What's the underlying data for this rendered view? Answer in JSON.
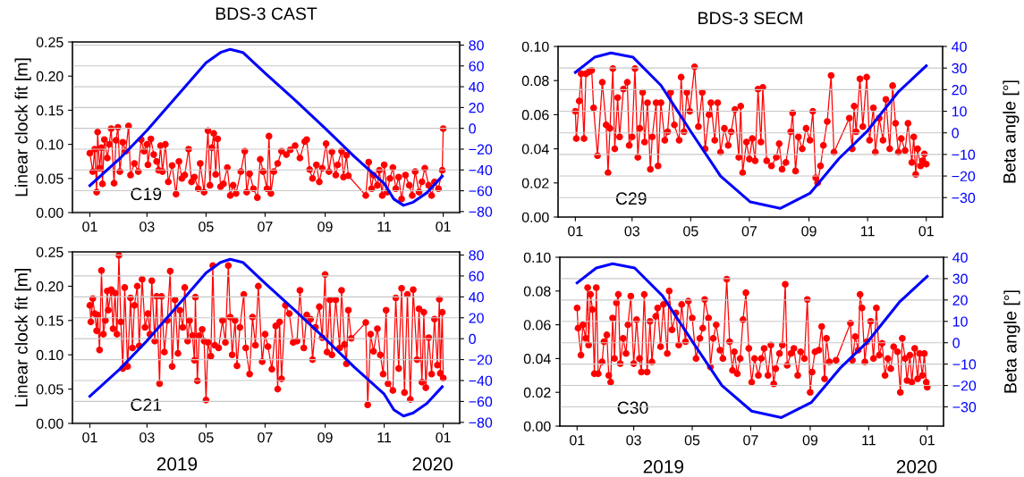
{
  "chart_data": [
    {
      "type": "line",
      "title": "BDS-3 CAST",
      "ylabel": "Linear clock fit [m]",
      "annotations": [
        "C19"
      ],
      "grid": "y",
      "xlim": [
        "2018-12-14",
        "2020-01-18"
      ],
      "xticks": [
        {
          "value": "2019-01-01",
          "label": "01"
        },
        {
          "value": "2019-03-01",
          "label": "03"
        },
        {
          "value": "2019-05-01",
          "label": "05"
        },
        {
          "value": "2019-07-01",
          "label": "07"
        },
        {
          "value": "2019-09-01",
          "label": "09"
        },
        {
          "value": "2019-11-01",
          "label": "11"
        },
        {
          "value": "2020-01-01",
          "label": "01"
        }
      ],
      "ylim": [
        0,
        0.25
      ],
      "yticks": [
        {
          "value": 0,
          "label": "0.00"
        },
        {
          "value": 0.05,
          "label": "0.05"
        },
        {
          "value": 0.1,
          "label": "0.10"
        },
        {
          "value": 0.15,
          "label": "0.15"
        },
        {
          "value": 0.2,
          "label": "0.20"
        },
        {
          "value": 0.25,
          "label": "0.25"
        }
      ],
      "y2lim": [
        -81,
        83
      ],
      "y2ticks": [
        {
          "value": -80,
          "label": "−80"
        },
        {
          "value": -60,
          "label": "−60"
        },
        {
          "value": -40,
          "label": "−40"
        },
        {
          "value": -20,
          "label": "−20"
        },
        {
          "value": 0,
          "label": "0"
        },
        {
          "value": 20,
          "label": "20"
        },
        {
          "value": 40,
          "label": "40"
        },
        {
          "value": 60,
          "label": "60"
        },
        {
          "value": 80,
          "label": "80"
        }
      ],
      "x": [
        "2019-01-01",
        "2019-01-04",
        "2019-01-06",
        "2019-01-08",
        "2019-01-09",
        "2019-01-11",
        "2019-01-13",
        "2019-01-14",
        "2019-01-16",
        "2019-01-19",
        "2019-01-21",
        "2019-01-23",
        "2019-01-26",
        "2019-01-28",
        "2019-01-30",
        "2019-02-01",
        "2019-02-04",
        "2019-02-07",
        "2019-02-10",
        "2019-02-12",
        "2019-02-16",
        "2019-02-20",
        "2019-02-23",
        "2019-02-26",
        "2019-03-01",
        "2019-03-02",
        "2019-03-05",
        "2019-03-08",
        "2019-03-11",
        "2019-03-13",
        "2019-03-15",
        "2019-03-17",
        "2019-03-20",
        "2019-03-23",
        "2019-03-27",
        "2019-03-31",
        "2019-04-03",
        "2019-04-06",
        "2019-04-09",
        "2019-04-13",
        "2019-04-16",
        "2019-04-19",
        "2019-04-23",
        "2019-04-25",
        "2019-04-29",
        "2019-05-03",
        "2019-05-05",
        "2019-05-07",
        "2019-05-09",
        "2019-05-11",
        "2019-05-13",
        "2019-05-16",
        "2019-05-19",
        "2019-05-23",
        "2019-05-26",
        "2019-05-29",
        "2019-06-01",
        "2019-06-06",
        "2019-06-10",
        "2019-06-12",
        "2019-06-15",
        "2019-06-19",
        "2019-06-23",
        "2019-06-26",
        "2019-06-29",
        "2019-07-03",
        "2019-07-05",
        "2019-07-07",
        "2019-07-10",
        "2019-07-14",
        "2019-07-18",
        "2019-07-23",
        "2019-07-27",
        "2019-08-01",
        "2019-08-06",
        "2019-08-11",
        "2019-08-13",
        "2019-08-16",
        "2019-08-19",
        "2019-08-23",
        "2019-08-26",
        "2019-08-29",
        "2019-09-02",
        "2019-09-05",
        "2019-09-08",
        "2019-09-12",
        "2019-09-14",
        "2019-09-18",
        "2019-09-20",
        "2019-09-23",
        "2019-09-25",
        "2019-10-13",
        "2019-10-16",
        "2019-10-19",
        "2019-10-21",
        "2019-10-25",
        "2019-10-27",
        "2019-10-30",
        "2019-11-01",
        "2019-11-04",
        "2019-11-07",
        "2019-11-10",
        "2019-11-13",
        "2019-11-16",
        "2019-11-19",
        "2019-11-23",
        "2019-11-27",
        "2019-11-30",
        "2019-12-03",
        "2019-12-07",
        "2019-12-10",
        "2019-12-13",
        "2019-12-17",
        "2019-12-20",
        "2019-12-23",
        "2019-12-27",
        "2019-12-31",
        "2020-01-01"
      ],
      "series": [
        {
          "color": "#ff0000",
          "marker": "circle",
          "values": [
            0.087,
            0.06,
            0.093,
            0.03,
            0.118,
            0.065,
            0.095,
            0.042,
            0.107,
            0.08,
            0.1,
            0.123,
            0.043,
            0.106,
            0.125,
            0.06,
            0.103,
            0.09,
            0.127,
            0.055,
            0.072,
            0.06,
            0.107,
            0.09,
            0.1,
            0.07,
            0.108,
            0.085,
            0.075,
            0.062,
            0.098,
            0.06,
            0.1,
            0.045,
            0.069,
            0.027,
            0.075,
            0.05,
            0.055,
            0.093,
            0.045,
            0.052,
            0.035,
            0.072,
            0.03,
            0.12,
            0.04,
            0.095,
            0.116,
            0.056,
            0.108,
            0.038,
            0.042,
            0.066,
            0.025,
            0.04,
            0.028,
            0.06,
            0.09,
            0.03,
            0.057,
            0.035,
            0.022,
            0.078,
            0.06,
            0.035,
            0.112,
            0.028,
            0.06,
            0.072,
            0.09,
            0.085,
            0.092,
            0.098,
            0.08,
            0.104,
            0.107,
            0.063,
            0.05,
            0.07,
            0.045,
            0.065,
            0.101,
            0.06,
            0.089,
            0.055,
            0.07,
            0.09,
            0.052,
            0.084,
            0.054,
            0.025,
            0.074,
            0.035,
            0.055,
            0.04,
            0.062,
            0.025,
            0.07,
            0.03,
            0.05,
            0.066,
            0.035,
            0.052,
            0.02,
            0.055,
            0.04,
            0.025,
            0.06,
            0.03,
            0.045,
            0.065,
            0.04,
            0.025,
            0.045,
            0.035,
            0.062,
            0.123
          ]
        },
        {
          "color": "#0000ff",
          "axis": "y2",
          "x": [
            "2019-01-01",
            "2019-02-01",
            "2019-03-01",
            "2019-04-01",
            "2019-05-01",
            "2019-05-16",
            "2019-05-26",
            "2019-06-08",
            "2019-07-01",
            "2019-08-01",
            "2019-09-01",
            "2019-10-01",
            "2019-11-01",
            "2019-11-11",
            "2019-11-21",
            "2019-12-01",
            "2019-12-15",
            "2019-12-31"
          ],
          "values": [
            -55,
            -29,
            -2,
            31,
            63,
            73,
            76,
            73,
            53,
            27,
            0,
            -27,
            -53,
            -68,
            -74,
            -71,
            -62,
            -46
          ]
        }
      ]
    },
    {
      "type": "line",
      "title": "BDS-3 SECM",
      "y2label": "Beta angle [°]",
      "annotations": [
        "C29"
      ],
      "grid": "y",
      "xlim": [
        "2018-12-14",
        "2020-01-18"
      ],
      "xticks": [
        {
          "value": "2019-01-01",
          "label": "01"
        },
        {
          "value": "2019-03-01",
          "label": "03"
        },
        {
          "value": "2019-05-01",
          "label": "05"
        },
        {
          "value": "2019-07-01",
          "label": "07"
        },
        {
          "value": "2019-09-01",
          "label": "09"
        },
        {
          "value": "2019-11-01",
          "label": "11"
        },
        {
          "value": "2020-01-01",
          "label": "01"
        }
      ],
      "ylim": [
        0,
        0.1
      ],
      "yticks": [
        {
          "value": 0,
          "label": "0.00"
        },
        {
          "value": 0.02,
          "label": "0.02"
        },
        {
          "value": 0.04,
          "label": "0.04"
        },
        {
          "value": 0.06,
          "label": "0.06"
        },
        {
          "value": 0.08,
          "label": "0.08"
        },
        {
          "value": 0.1,
          "label": "0.10"
        }
      ],
      "y2lim": [
        -39,
        40
      ],
      "y2ticks": [
        {
          "value": -30,
          "label": "−30"
        },
        {
          "value": -20,
          "label": "−20"
        },
        {
          "value": -10,
          "label": "−10"
        },
        {
          "value": 0,
          "label": "0"
        },
        {
          "value": 10,
          "label": "10"
        },
        {
          "value": 20,
          "label": "20"
        },
        {
          "value": 30,
          "label": "30"
        },
        {
          "value": 40,
          "label": "40"
        }
      ],
      "x": [
        "2019-01-01",
        "2019-01-02",
        "2019-01-05",
        "2019-01-07",
        "2019-01-10",
        "2019-01-12",
        "2019-01-15",
        "2019-01-18",
        "2019-01-20",
        "2019-01-24",
        "2019-01-29",
        "2019-02-02",
        "2019-02-04",
        "2019-02-06",
        "2019-02-09",
        "2019-02-11",
        "2019-02-14",
        "2019-02-16",
        "2019-02-20",
        "2019-02-24",
        "2019-02-26",
        "2019-03-01",
        "2019-03-04",
        "2019-03-07",
        "2019-03-09",
        "2019-03-12",
        "2019-03-14",
        "2019-03-17",
        "2019-03-20",
        "2019-03-22",
        "2019-03-26",
        "2019-03-28",
        "2019-03-31",
        "2019-04-04",
        "2019-04-07",
        "2019-04-10",
        "2019-04-14",
        "2019-04-19",
        "2019-04-21",
        "2019-04-24",
        "2019-04-27",
        "2019-04-30",
        "2019-05-05",
        "2019-05-09",
        "2019-05-13",
        "2019-05-16",
        "2019-05-20",
        "2019-05-22",
        "2019-05-26",
        "2019-05-29",
        "2019-06-01",
        "2019-06-05",
        "2019-06-09",
        "2019-06-12",
        "2019-06-16",
        "2019-06-20",
        "2019-06-22",
        "2019-06-24",
        "2019-06-28",
        "2019-07-01",
        "2019-07-04",
        "2019-07-07",
        "2019-07-10",
        "2019-07-13",
        "2019-07-15",
        "2019-07-19",
        "2019-07-24",
        "2019-07-29",
        "2019-08-01",
        "2019-08-04",
        "2019-08-08",
        "2019-08-13",
        "2019-08-15",
        "2019-08-18",
        "2019-08-21",
        "2019-08-25",
        "2019-08-29",
        "2019-09-02",
        "2019-09-05",
        "2019-09-08",
        "2019-09-10",
        "2019-09-13",
        "2019-09-16",
        "2019-09-20",
        "2019-09-24",
        "2019-09-27",
        "2019-10-13",
        "2019-10-16",
        "2019-10-18",
        "2019-10-20",
        "2019-10-24",
        "2019-10-27",
        "2019-10-31",
        "2019-11-03",
        "2019-11-07",
        "2019-11-09",
        "2019-11-13",
        "2019-11-17",
        "2019-11-20",
        "2019-11-24",
        "2019-11-27",
        "2019-11-30",
        "2019-12-03",
        "2019-12-06",
        "2019-12-10",
        "2019-12-13",
        "2019-12-17",
        "2019-12-19",
        "2019-12-21",
        "2019-12-23",
        "2019-12-26",
        "2019-12-28",
        "2019-12-30",
        "2020-01-01"
      ],
      "series": [
        {
          "color": "#ff0000",
          "marker": "circle",
          "values": [
            0.062,
            0.046,
            0.068,
            0.084,
            0.046,
            0.084,
            0.085,
            0.086,
            0.064,
            0.036,
            0.079,
            0.054,
            0.026,
            0.052,
            0.087,
            0.04,
            0.07,
            0.047,
            0.075,
            0.079,
            0.042,
            0.047,
            0.087,
            0.035,
            0.052,
            0.073,
            0.044,
            0.067,
            0.028,
            0.047,
            0.067,
            0.03,
            0.067,
            0.045,
            0.05,
            0.073,
            0.054,
            0.045,
            0.082,
            0.05,
            0.073,
            0.062,
            0.088,
            0.053,
            0.073,
            0.04,
            0.06,
            0.067,
            0.045,
            0.067,
            0.038,
            0.052,
            0.042,
            0.05,
            0.063,
            0.035,
            0.065,
            0.026,
            0.044,
            0.034,
            0.046,
            0.033,
            0.075,
            0.044,
            0.076,
            0.033,
            0.03,
            0.035,
            0.043,
            0.028,
            0.032,
            0.05,
            0.061,
            0.027,
            0.047,
            0.04,
            0.052,
            0.045,
            0.062,
            0.023,
            0.02,
            0.03,
            0.042,
            0.056,
            0.083,
            0.038,
            0.058,
            0.04,
            0.065,
            0.05,
            0.081,
            0.053,
            0.082,
            0.045,
            0.064,
            0.038,
            0.058,
            0.045,
            0.069,
            0.04,
            0.077,
            0.055,
            0.038,
            0.046,
            0.039,
            0.055,
            0.032,
            0.047,
            0.025,
            0.04,
            0.03,
            0.033,
            0.037,
            0.031
          ]
        },
        {
          "color": "#0000ff",
          "axis": "y2",
          "x": [
            "2019-01-01",
            "2019-01-21",
            "2019-02-07",
            "2019-03-02",
            "2019-03-31",
            "2019-05-02",
            "2019-06-01",
            "2019-07-02",
            "2019-08-02",
            "2019-09-02",
            "2019-10-02",
            "2019-11-01",
            "2019-12-03",
            "2020-01-01"
          ],
          "values": [
            28,
            35,
            37,
            35,
            22,
            0,
            -20,
            -32,
            -35,
            -28,
            -12,
            1,
            19,
            31
          ]
        }
      ]
    },
    {
      "type": "line",
      "ylabel": "Linear clock fit [m]",
      "annotations": [
        "C21",
        "2019",
        "2020"
      ],
      "grid": "y",
      "xlim": [
        "2018-12-14",
        "2020-01-18"
      ],
      "xticks": [
        {
          "value": "2019-01-01",
          "label": "01"
        },
        {
          "value": "2019-03-01",
          "label": "03"
        },
        {
          "value": "2019-05-01",
          "label": "05"
        },
        {
          "value": "2019-07-01",
          "label": "07"
        },
        {
          "value": "2019-09-01",
          "label": "09"
        },
        {
          "value": "2019-11-01",
          "label": "11"
        },
        {
          "value": "2020-01-01",
          "label": "01"
        }
      ],
      "ylim": [
        0,
        0.25
      ],
      "yticks": [
        {
          "value": 0,
          "label": "0.00"
        },
        {
          "value": 0.05,
          "label": "0.05"
        },
        {
          "value": 0.1,
          "label": "0.10"
        },
        {
          "value": 0.15,
          "label": "0.15"
        },
        {
          "value": 0.2,
          "label": "0.20"
        },
        {
          "value": 0.25,
          "label": "0.25"
        }
      ],
      "y2lim": [
        -81,
        83
      ],
      "y2ticks": [
        {
          "value": -80,
          "label": "−80"
        },
        {
          "value": -60,
          "label": "−60"
        },
        {
          "value": -40,
          "label": "−40"
        },
        {
          "value": -20,
          "label": "−20"
        },
        {
          "value": 0,
          "label": "0"
        },
        {
          "value": 20,
          "label": "20"
        },
        {
          "value": 40,
          "label": "40"
        },
        {
          "value": 60,
          "label": "60"
        },
        {
          "value": 80,
          "label": "80"
        }
      ],
      "x": [
        "2019-01-01",
        "2019-01-02",
        "2019-01-04",
        "2019-01-06",
        "2019-01-08",
        "2019-01-09",
        "2019-01-11",
        "2019-01-13",
        "2019-01-15",
        "2019-01-17",
        "2019-01-19",
        "2019-01-20",
        "2019-01-23",
        "2019-01-25",
        "2019-01-27",
        "2019-01-29",
        "2019-01-31",
        "2019-02-02",
        "2019-02-04",
        "2019-02-06",
        "2019-02-09",
        "2019-02-12",
        "2019-02-14",
        "2019-02-16",
        "2019-02-19",
        "2019-02-21",
        "2019-02-24",
        "2019-02-27",
        "2019-03-02",
        "2019-03-04",
        "2019-03-06",
        "2019-03-09",
        "2019-03-11",
        "2019-03-14",
        "2019-03-16",
        "2019-03-19",
        "2019-03-22",
        "2019-03-25",
        "2019-03-27",
        "2019-03-30",
        "2019-04-02",
        "2019-04-04",
        "2019-04-07",
        "2019-04-09",
        "2019-04-12",
        "2019-04-14",
        "2019-04-17",
        "2019-04-19",
        "2019-04-20",
        "2019-04-22",
        "2019-04-24",
        "2019-04-27",
        "2019-04-29",
        "2019-05-01",
        "2019-05-03",
        "2019-05-06",
        "2019-05-08",
        "2019-05-10",
        "2019-05-14",
        "2019-05-18",
        "2019-05-21",
        "2019-05-24",
        "2019-05-26",
        "2019-05-28",
        "2019-05-31",
        "2019-06-02",
        "2019-06-05",
        "2019-06-09",
        "2019-06-11",
        "2019-06-15",
        "2019-06-18",
        "2019-06-21",
        "2019-06-24",
        "2019-06-28",
        "2019-07-01",
        "2019-07-04",
        "2019-07-08",
        "2019-07-12",
        "2019-07-14",
        "2019-07-16",
        "2019-07-18",
        "2019-07-22",
        "2019-07-26",
        "2019-07-30",
        "2019-08-03",
        "2019-08-06",
        "2019-08-10",
        "2019-08-13",
        "2019-08-17",
        "2019-08-19",
        "2019-08-22",
        "2019-08-26",
        "2019-08-29",
        "2019-09-01",
        "2019-09-03",
        "2019-09-06",
        "2019-09-08",
        "2019-09-12",
        "2019-09-16",
        "2019-09-18",
        "2019-09-21",
        "2019-09-23",
        "2019-09-25",
        "2019-09-28",
        "2019-10-13",
        "2019-10-15",
        "2019-10-18",
        "2019-10-21",
        "2019-10-25",
        "2019-10-28",
        "2019-10-31",
        "2019-11-03",
        "2019-11-05",
        "2019-11-10",
        "2019-11-13",
        "2019-11-16",
        "2019-11-19",
        "2019-11-22",
        "2019-11-25",
        "2019-11-28",
        "2019-12-01",
        "2019-12-05",
        "2019-12-07",
        "2019-12-10",
        "2019-12-12",
        "2019-12-14",
        "2019-12-17",
        "2019-12-20",
        "2019-12-23",
        "2019-12-26",
        "2019-12-28",
        "2019-12-29",
        "2019-12-31",
        "2020-01-01"
      ],
      "series": [
        {
          "color": "#ff0000",
          "marker": "circle",
          "values": [
            0.172,
            0.148,
            0.182,
            0.16,
            0.135,
            0.158,
            0.107,
            0.223,
            0.13,
            0.15,
            0.193,
            0.165,
            0.195,
            0.138,
            0.19,
            0.13,
            0.245,
            0.148,
            0.08,
            0.198,
            0.083,
            0.183,
            0.11,
            0.172,
            0.2,
            0.113,
            0.21,
            0.14,
            0.16,
            0.13,
            0.208,
            0.12,
            0.185,
            0.058,
            0.185,
            0.104,
            0.15,
            0.222,
            0.083,
            0.18,
            0.102,
            0.165,
            0.14,
            0.198,
            0.12,
            0.15,
            0.128,
            0.092,
            0.184,
            0.062,
            0.128,
            0.137,
            0.12,
            0.034,
            0.118,
            0.098,
            0.23,
            0.114,
            0.11,
            0.15,
            0.118,
            0.23,
            0.155,
            0.1,
            0.15,
            0.084,
            0.14,
            0.188,
            0.11,
            0.072,
            0.155,
            0.114,
            0.2,
            0.09,
            0.13,
            0.112,
            0.079,
            0.142,
            0.05,
            0.148,
            0.065,
            0.172,
            0.16,
            0.118,
            0.12,
            0.194,
            0.11,
            0.158,
            0.152,
            0.093,
            0.14,
            0.17,
            0.125,
            0.217,
            0.104,
            0.18,
            0.1,
            0.18,
            0.11,
            0.194,
            0.115,
            0.087,
            0.165,
            0.124,
            0.147,
            0.027,
            0.13,
            0.105,
            0.138,
            0.1,
            0.072,
            0.165,
            0.058,
            0.048,
            0.183,
            0.08,
            0.197,
            0.045,
            0.188,
            0.035,
            0.195,
            0.093,
            0.167,
            0.06,
            0.162,
            0.052,
            0.125,
            0.072,
            0.152,
            0.085,
            0.181,
            0.073,
            0.162,
            0.066
          ]
        },
        {
          "color": "#0000ff",
          "axis": "y2",
          "x": [
            "2019-01-01",
            "2019-02-01",
            "2019-03-01",
            "2019-04-01",
            "2019-05-01",
            "2019-05-16",
            "2019-05-26",
            "2019-06-08",
            "2019-07-01",
            "2019-08-01",
            "2019-09-01",
            "2019-10-01",
            "2019-11-01",
            "2019-11-11",
            "2019-11-21",
            "2019-12-01",
            "2019-12-15",
            "2019-12-31"
          ],
          "values": [
            -55,
            -29,
            -2,
            31,
            63,
            73,
            76,
            73,
            53,
            27,
            0,
            -27,
            -53,
            -68,
            -74,
            -71,
            -62,
            -46
          ]
        }
      ]
    },
    {
      "type": "line",
      "y2label": "Beta angle [°]",
      "annotations": [
        "C30",
        "2019",
        "2020"
      ],
      "grid": "y",
      "xlim": [
        "2018-12-14",
        "2020-01-18"
      ],
      "xticks": [
        {
          "value": "2019-01-01",
          "label": "01"
        },
        {
          "value": "2019-03-01",
          "label": "03"
        },
        {
          "value": "2019-05-01",
          "label": "05"
        },
        {
          "value": "2019-07-01",
          "label": "07"
        },
        {
          "value": "2019-09-01",
          "label": "09"
        },
        {
          "value": "2019-11-01",
          "label": "11"
        },
        {
          "value": "2020-01-01",
          "label": "01"
        }
      ],
      "ylim": [
        0,
        0.1
      ],
      "yticks": [
        {
          "value": 0,
          "label": "0.00"
        },
        {
          "value": 0.02,
          "label": "0.02"
        },
        {
          "value": 0.04,
          "label": "0.04"
        },
        {
          "value": 0.06,
          "label": "0.06"
        },
        {
          "value": 0.08,
          "label": "0.08"
        },
        {
          "value": 0.1,
          "label": "0.10"
        }
      ],
      "y2lim": [
        -39,
        40
      ],
      "y2ticks": [
        {
          "value": -30,
          "label": "−30"
        },
        {
          "value": -20,
          "label": "−20"
        },
        {
          "value": -10,
          "label": "−10"
        },
        {
          "value": 0,
          "label": "0"
        },
        {
          "value": 10,
          "label": "10"
        },
        {
          "value": 20,
          "label": "20"
        },
        {
          "value": 30,
          "label": "30"
        },
        {
          "value": 40,
          "label": "40"
        }
      ],
      "x": [
        "2019-01-01",
        "2019-01-02",
        "2019-01-05",
        "2019-01-07",
        "2019-01-10",
        "2019-01-12",
        "2019-01-13",
        "2019-01-15",
        "2019-01-17",
        "2019-01-19",
        "2019-01-21",
        "2019-01-23",
        "2019-01-27",
        "2019-01-29",
        "2019-02-01",
        "2019-02-03",
        "2019-02-05",
        "2019-02-07",
        "2019-02-09",
        "2019-02-11",
        "2019-02-13",
        "2019-02-15",
        "2019-02-18",
        "2019-02-21",
        "2019-02-23",
        "2019-02-26",
        "2019-03-01",
        "2019-03-04",
        "2019-03-07",
        "2019-03-09",
        "2019-03-12",
        "2019-03-15",
        "2019-03-18",
        "2019-03-20",
        "2019-03-24",
        "2019-03-26",
        "2019-03-29",
        "2019-04-01",
        "2019-04-05",
        "2019-04-07",
        "2019-04-10",
        "2019-04-14",
        "2019-04-17",
        "2019-04-20",
        "2019-04-24",
        "2019-04-27",
        "2019-05-01",
        "2019-05-05",
        "2019-05-09",
        "2019-05-12",
        "2019-05-14",
        "2019-05-18",
        "2019-05-20",
        "2019-05-23",
        "2019-05-26",
        "2019-05-30",
        "2019-06-02",
        "2019-06-06",
        "2019-06-09",
        "2019-06-12",
        "2019-06-14",
        "2019-06-17",
        "2019-06-20",
        "2019-06-23",
        "2019-06-26",
        "2019-06-29",
        "2019-07-02",
        "2019-07-05",
        "2019-07-09",
        "2019-07-12",
        "2019-07-15",
        "2019-07-19",
        "2019-07-22",
        "2019-07-25",
        "2019-07-27",
        "2019-07-31",
        "2019-08-03",
        "2019-08-06",
        "2019-08-08",
        "2019-08-12",
        "2019-08-15",
        "2019-08-19",
        "2019-08-22",
        "2019-08-26",
        "2019-08-29",
        "2019-09-01",
        "2019-09-03",
        "2019-09-06",
        "2019-09-10",
        "2019-09-13",
        "2019-09-16",
        "2019-09-18",
        "2019-09-21",
        "2019-09-28",
        "2019-10-13",
        "2019-10-15",
        "2019-10-18",
        "2019-10-21",
        "2019-10-23",
        "2019-10-25",
        "2019-10-28",
        "2019-10-30",
        "2019-11-03",
        "2019-11-06",
        "2019-11-09",
        "2019-11-12",
        "2019-11-15",
        "2019-11-18",
        "2019-11-21",
        "2019-11-24",
        "2019-11-27",
        "2019-12-01",
        "2019-12-04",
        "2019-12-06",
        "2019-12-09",
        "2019-12-11",
        "2019-12-14",
        "2019-12-16",
        "2019-12-19",
        "2019-12-22",
        "2019-12-24",
        "2019-12-27",
        "2019-12-29",
        "2019-12-31",
        "2020-01-01"
      ],
      "series": [
        {
          "color": "#ff0000",
          "marker": "circle",
          "values": [
            0.07,
            0.058,
            0.042,
            0.06,
            0.052,
            0.082,
            0.048,
            0.078,
            0.069,
            0.031,
            0.082,
            0.031,
            0.038,
            0.05,
            0.054,
            0.03,
            0.026,
            0.064,
            0.04,
            0.073,
            0.078,
            0.037,
            0.052,
            0.043,
            0.06,
            0.077,
            0.037,
            0.063,
            0.04,
            0.032,
            0.078,
            0.032,
            0.062,
            0.038,
            0.065,
            0.07,
            0.047,
            0.072,
            0.043,
            0.08,
            0.057,
            0.067,
            0.048,
            0.072,
            0.05,
            0.074,
            0.064,
            0.04,
            0.052,
            0.058,
            0.075,
            0.064,
            0.035,
            0.052,
            0.06,
            0.045,
            0.04,
            0.087,
            0.05,
            0.033,
            0.044,
            0.031,
            0.04,
            0.063,
            0.079,
            0.046,
            0.026,
            0.04,
            0.03,
            0.04,
            0.046,
            0.03,
            0.048,
            0.025,
            0.034,
            0.043,
            0.048,
            0.084,
            0.036,
            0.043,
            0.046,
            0.03,
            0.044,
            0.04,
            0.075,
            0.02,
            0.032,
            0.044,
            0.045,
            0.059,
            0.028,
            0.052,
            0.038,
            0.039,
            0.061,
            0.039,
            0.053,
            0.045,
            0.078,
            0.07,
            0.038,
            0.05,
            0.062,
            0.04,
            0.07,
            0.042,
            0.049,
            0.03,
            0.04,
            0.034,
            0.047,
            0.044,
            0.02,
            0.052,
            0.04,
            0.027,
            0.042,
            0.026,
            0.046,
            0.028,
            0.043,
            0.03,
            0.043,
            0.026,
            0.023
          ]
        },
        {
          "color": "#0000ff",
          "axis": "y2",
          "x": [
            "2019-01-01",
            "2019-01-21",
            "2019-02-07",
            "2019-03-02",
            "2019-03-31",
            "2019-05-02",
            "2019-06-01",
            "2019-07-02",
            "2019-08-02",
            "2019-09-02",
            "2019-10-02",
            "2019-11-01",
            "2019-12-03",
            "2020-01-01"
          ],
          "values": [
            28,
            35,
            37,
            35,
            22,
            0,
            -20,
            -32,
            -35,
            -28,
            -12,
            1,
            19,
            31
          ]
        }
      ]
    }
  ]
}
